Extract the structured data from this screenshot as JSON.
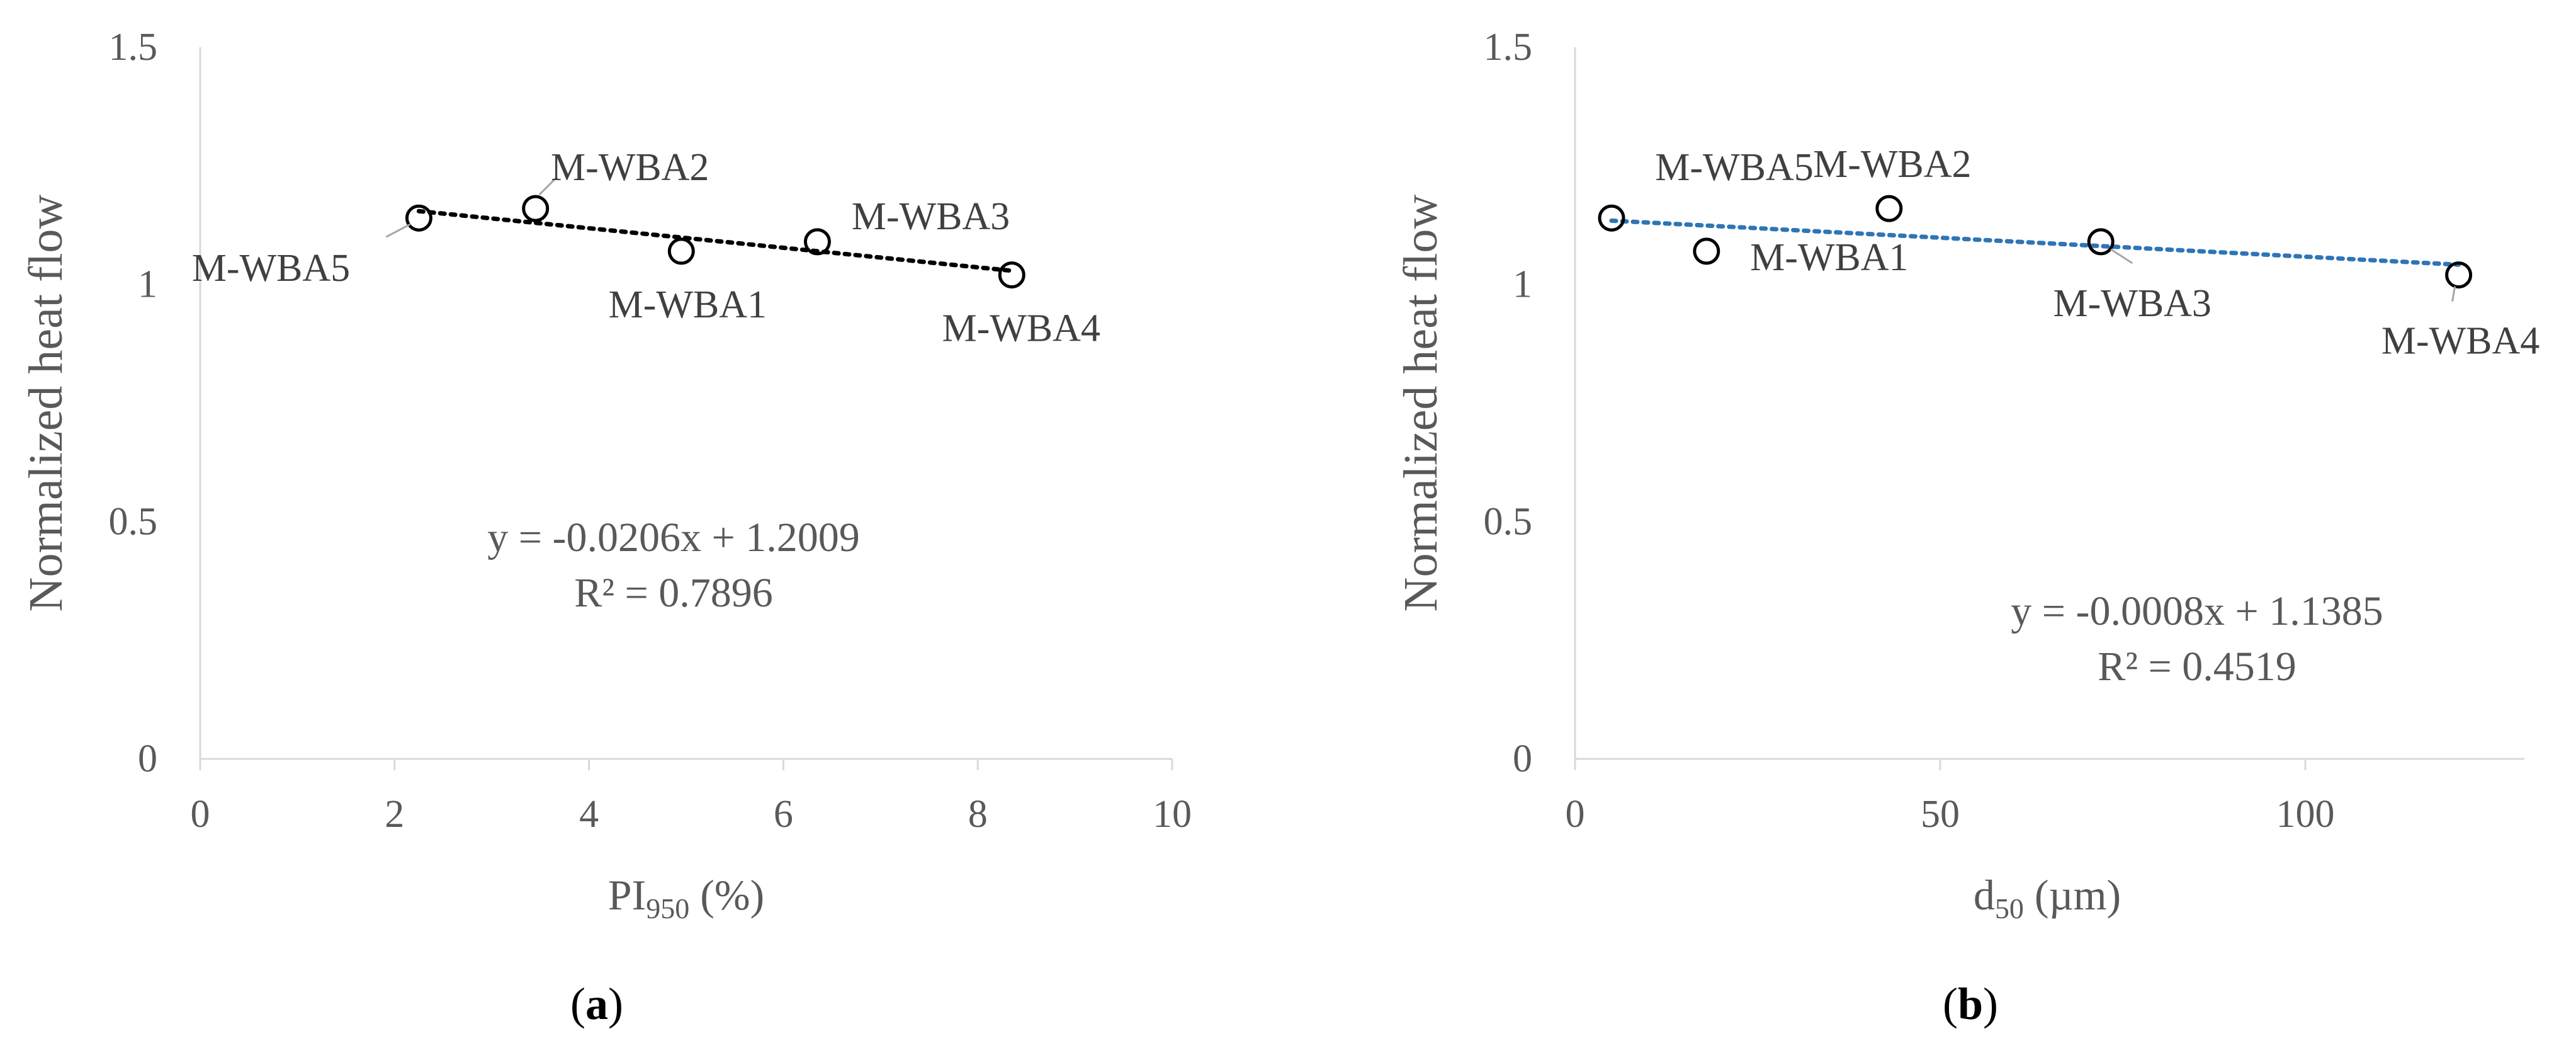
{
  "chart_data": [
    {
      "type": "scatter",
      "panel_label": "a",
      "xlabel": {
        "main": "PI",
        "sub": "950",
        "unit": " (%)"
      },
      "ylabel": "Normalized heat flow",
      "xlim": [
        0,
        10
      ],
      "ylim": [
        0,
        1.5
      ],
      "x_ticks": [
        "0",
        "2",
        "4",
        "6",
        "8",
        "10"
      ],
      "y_ticks": [
        "0",
        "0.5",
        "1",
        "1.5"
      ],
      "points": [
        {
          "label": "M-WBA5",
          "x": 2.25,
          "y": 1.14
        },
        {
          "label": "M-WBA2",
          "x": 3.45,
          "y": 1.16
        },
        {
          "label": "M-WBA1",
          "x": 4.95,
          "y": 1.07
        },
        {
          "label": "M-WBA3",
          "x": 6.35,
          "y": 1.09
        },
        {
          "label": "M-WBA4",
          "x": 8.35,
          "y": 1.02
        }
      ],
      "trendline": {
        "slope": -0.0206,
        "intercept": 1.2009,
        "x_range": [
          2.25,
          8.35
        ],
        "color": "#000000"
      },
      "equation": "y = -0.0206x + 1.2009",
      "r2": "R² = 0.7896",
      "grid": false,
      "marker": "open-circle"
    },
    {
      "type": "scatter",
      "panel_label": "b",
      "xlabel": {
        "main": "d",
        "sub": "50",
        "unit": " (µm)"
      },
      "ylabel": "Normalized heat flow",
      "xlim": [
        0,
        130
      ],
      "ylim": [
        0,
        1.5
      ],
      "x_ticks": [
        "0",
        "50",
        "100"
      ],
      "y_ticks": [
        "0",
        "0.5",
        "1",
        "1.5"
      ],
      "points": [
        {
          "label": "M-WBA5",
          "x": 5,
          "y": 1.14
        },
        {
          "label": "M-WBA1",
          "x": 18,
          "y": 1.07
        },
        {
          "label": "M-WBA2",
          "x": 43,
          "y": 1.16
        },
        {
          "label": "M-WBA3",
          "x": 72,
          "y": 1.09
        },
        {
          "label": "M-WBA4",
          "x": 121,
          "y": 1.02
        }
      ],
      "trendline": {
        "slope": -0.0008,
        "intercept": 1.1385,
        "x_range": [
          5,
          121
        ],
        "color": "#2e75b6"
      },
      "equation": "y = -0.0008x + 1.1385",
      "r2": "R² = 0.4519",
      "grid": false,
      "marker": "open-circle"
    }
  ]
}
